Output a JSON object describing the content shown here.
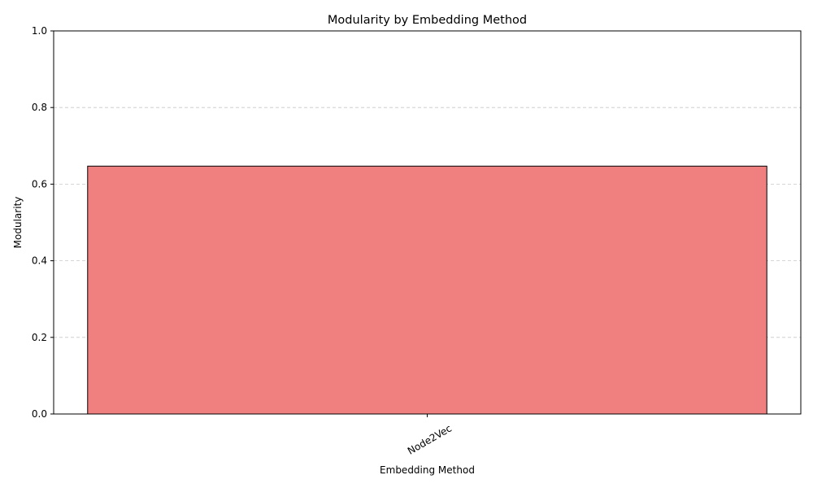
{
  "chart_data": {
    "type": "bar",
    "title": "Modularity by Embedding Method",
    "xlabel": "Embedding Method",
    "ylabel": "Modularity",
    "categories": [
      "Node2Vec"
    ],
    "values": [
      0.647
    ],
    "ylim": [
      0,
      1
    ],
    "yticks": [
      "0.0",
      "0.2",
      "0.4",
      "0.6",
      "0.8",
      "1.0"
    ],
    "grid": "y-dashed",
    "bar_color": "#f08080",
    "bar_edge_color": "#000000",
    "grid_color": "#c8c8c8",
    "xtick_rotation": "30deg"
  }
}
